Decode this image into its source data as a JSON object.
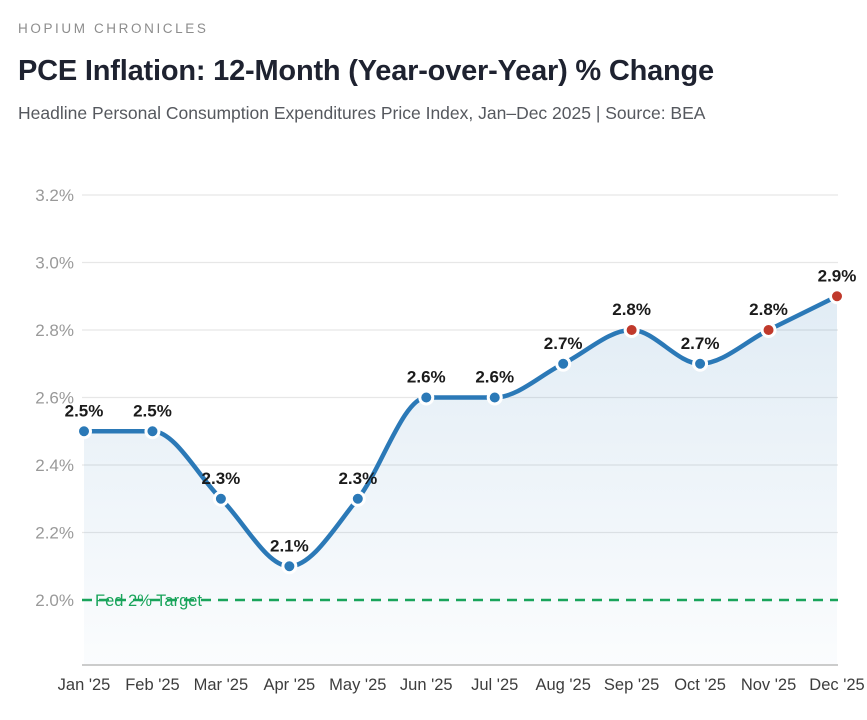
{
  "header": {
    "kicker": "HOPIUM CHRONICLES"
  },
  "chart_data": {
    "type": "line",
    "title": "PCE Inflation: 12-Month (Year-over-Year) % Change",
    "subtitle": "Headline Personal Consumption Expenditures Price Index, Jan–Dec 2025 | Source: BEA",
    "categories": [
      "Jan '25",
      "Feb '25",
      "Mar '25",
      "Apr '25",
      "May '25",
      "Jun '25",
      "Jul '25",
      "Aug '25",
      "Sep '25",
      "Oct '25",
      "Nov '25",
      "Dec '25"
    ],
    "values": [
      2.5,
      2.5,
      2.3,
      2.1,
      2.3,
      2.6,
      2.6,
      2.7,
      2.8,
      2.7,
      2.8,
      2.9
    ],
    "point_labels": [
      "2.5%",
      "2.5%",
      "2.3%",
      "2.1%",
      "2.3%",
      "2.6%",
      "2.6%",
      "2.7%",
      "2.8%",
      "2.7%",
      "2.8%",
      "2.9%"
    ],
    "highlight_indices": [
      8,
      10,
      11
    ],
    "y_ticks": [
      {
        "value": 3.2,
        "label": "3.2%"
      },
      {
        "value": 3.0,
        "label": "3.0%"
      },
      {
        "value": 2.8,
        "label": "2.8%"
      },
      {
        "value": 2.6,
        "label": "2.6%"
      },
      {
        "value": 2.4,
        "label": "2.4%"
      },
      {
        "value": 2.2,
        "label": "2.2%"
      },
      {
        "value": 2.0,
        "label": "2.0%"
      }
    ],
    "ylim": [
      2.0,
      3.2
    ],
    "grid": true,
    "legend": false,
    "xlabel": "",
    "ylabel": "",
    "target_line": {
      "value": 2.0,
      "label": "Fed 2% Target",
      "color": "#19a45b"
    },
    "colors": {
      "line": "#2b79b7",
      "point": "#2b79b7",
      "highlight_point": "#c0392b",
      "point_ring": "#ffffff",
      "area_top": "rgba(43,121,183,0.14)",
      "area_bottom": "rgba(43,121,183,0.02)",
      "grid": "#e7e7e7",
      "axis": "#bbbbbb",
      "y_tick_text": "#999999",
      "x_tick_text": "#3d3d3d",
      "data_label_text": "#1b1b1b"
    }
  }
}
